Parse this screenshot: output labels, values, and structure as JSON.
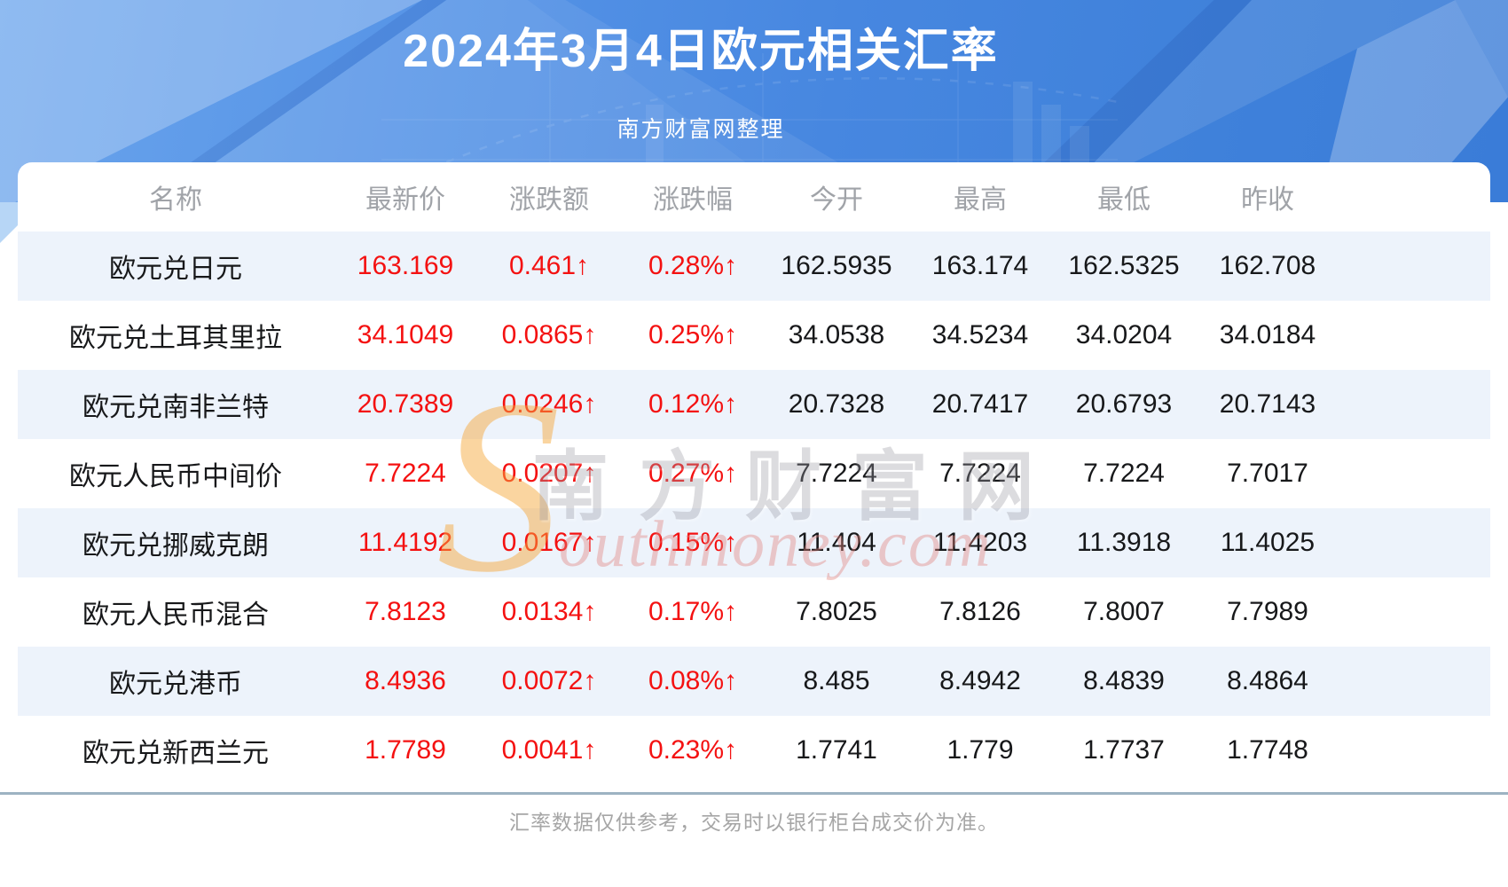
{
  "page": {
    "title": "2024年3月4日欧元相关汇率",
    "subtitle": "南方财富网整理",
    "footer_note": "汇率数据仅供参考，交易时以银行柜台成交价为准。"
  },
  "watermark": {
    "s_glyph": "S",
    "cn_text": "南方财富网",
    "en_text": "outhmoney.com"
  },
  "colors": {
    "hero_blue_start": "#6aa4ec",
    "hero_blue_end": "#3a7cd8",
    "up_red": "#f41111",
    "row_alt_bg": "#edf3fb",
    "header_text_gray": "#a0a3a8",
    "divider_gray_blue": "#9db3c2",
    "watermark_orange": "#f6a83b"
  },
  "table": {
    "columns": [
      "名称",
      "最新价",
      "涨跌额",
      "涨跌幅",
      "今开",
      "最高",
      "最低",
      "昨收"
    ],
    "rows": [
      {
        "name": "欧元兑日元",
        "latest": "163.169",
        "change": "0.461↑",
        "pct": "0.28%↑",
        "open": "162.5935",
        "high": "163.174",
        "low": "162.5325",
        "prev_close": "162.708"
      },
      {
        "name": "欧元兑土耳其里拉",
        "latest": "34.1049",
        "change": "0.0865↑",
        "pct": "0.25%↑",
        "open": "34.0538",
        "high": "34.5234",
        "low": "34.0204",
        "prev_close": "34.0184"
      },
      {
        "name": "欧元兑南非兰特",
        "latest": "20.7389",
        "change": "0.0246↑",
        "pct": "0.12%↑",
        "open": "20.7328",
        "high": "20.7417",
        "low": "20.6793",
        "prev_close": "20.7143"
      },
      {
        "name": "欧元人民币中间价",
        "latest": "7.7224",
        "change": "0.0207↑",
        "pct": "0.27%↑",
        "open": "7.7224",
        "high": "7.7224",
        "low": "7.7224",
        "prev_close": "7.7017"
      },
      {
        "name": "欧元兑挪威克朗",
        "latest": "11.4192",
        "change": "0.0167↑",
        "pct": "0.15%↑",
        "open": "11.404",
        "high": "11.4203",
        "low": "11.3918",
        "prev_close": "11.4025"
      },
      {
        "name": "欧元人民币混合",
        "latest": "7.8123",
        "change": "0.0134↑",
        "pct": "0.17%↑",
        "open": "7.8025",
        "high": "7.8126",
        "low": "7.8007",
        "prev_close": "7.7989"
      },
      {
        "name": "欧元兑港币",
        "latest": "8.4936",
        "change": "0.0072↑",
        "pct": "0.08%↑",
        "open": "8.485",
        "high": "8.4942",
        "low": "8.4839",
        "prev_close": "8.4864"
      },
      {
        "name": "欧元兑新西兰元",
        "latest": "1.7789",
        "change": "0.0041↑",
        "pct": "0.23%↑",
        "open": "1.7741",
        "high": "1.779",
        "low": "1.7737",
        "prev_close": "1.7748"
      }
    ]
  }
}
